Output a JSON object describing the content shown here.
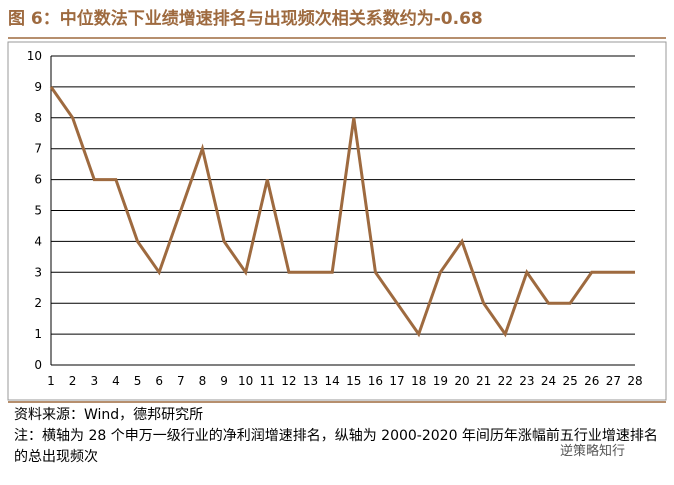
{
  "chart_data": {
    "type": "line",
    "title": "图 6：中位数法下业绩增速排名与出现频次相关系数约为-0.68",
    "categories": [
      "1",
      "2",
      "3",
      "4",
      "5",
      "6",
      "7",
      "8",
      "9",
      "10",
      "11",
      "12",
      "13",
      "14",
      "15",
      "16",
      "17",
      "18",
      "19",
      "20",
      "21",
      "22",
      "23",
      "24",
      "25",
      "26",
      "27",
      "28"
    ],
    "series": [
      {
        "name": "出现频次",
        "color": "#9e6a3f",
        "values": [
          9,
          8,
          6,
          6,
          4,
          3,
          5,
          7,
          4,
          3,
          6,
          3,
          3,
          3,
          8,
          3,
          2,
          1,
          3,
          4,
          2,
          1,
          3,
          2,
          2,
          3,
          3,
          3
        ]
      }
    ],
    "ylim": [
      0,
      10
    ],
    "yticks": [
      0,
      1,
      2,
      3,
      4,
      5,
      6,
      7,
      8,
      9,
      10
    ],
    "grid": true,
    "source": "资料来源：Wind，德邦研究所",
    "note": "注：横轴为 28 个申万一级行业的净利润增速排名，纵轴为 2000-2020 年间历年涨幅前五行业增速排名的总出现频次",
    "watermark": "逆策略知行"
  }
}
